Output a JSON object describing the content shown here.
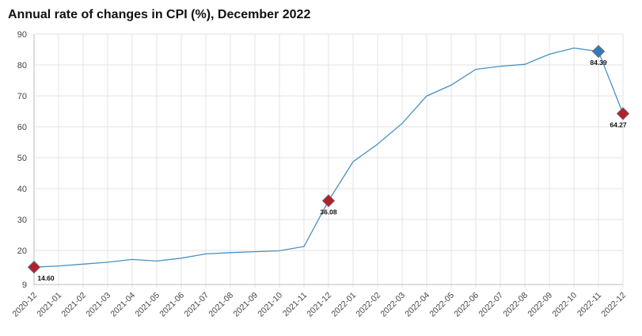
{
  "chart_data": {
    "type": "line",
    "title": "Annual rate of changes in CPI (%), December 2022",
    "xlabel": "",
    "ylabel": "",
    "ylim": [
      9,
      90
    ],
    "yticks": [
      9,
      20,
      30,
      40,
      50,
      60,
      70,
      80,
      90
    ],
    "grid": true,
    "categories": [
      "2020-12",
      "2021-01",
      "2021-02",
      "2021-03",
      "2021-04",
      "2021-05",
      "2021-06",
      "2021-07",
      "2021-08",
      "2021-09",
      "2021-10",
      "2021-11",
      "2021-12",
      "2022-01",
      "2022-02",
      "2022-03",
      "2022-04",
      "2022-05",
      "2022-06",
      "2022-07",
      "2022-08",
      "2022-09",
      "2022-10",
      "2022-11",
      "2022-12"
    ],
    "series": [
      {
        "values": [
          14.6,
          15.0,
          15.6,
          16.2,
          17.1,
          16.6,
          17.5,
          18.9,
          19.3,
          19.6,
          19.9,
          21.3,
          36.08,
          48.7,
          54.4,
          61.1,
          69.97,
          73.5,
          78.6,
          79.6,
          80.2,
          83.5,
          85.5,
          84.39,
          64.27
        ],
        "color": "#4a90c2"
      }
    ],
    "highlights": [
      {
        "index": 0,
        "label": "14.60",
        "color": "#b21f2d"
      },
      {
        "index": 12,
        "label": "36.08",
        "color": "#b21f2d"
      },
      {
        "index": 23,
        "label": "84.39",
        "color": "#2f7bbd"
      },
      {
        "index": 24,
        "label": "64.27",
        "color": "#b21f2d"
      }
    ]
  }
}
